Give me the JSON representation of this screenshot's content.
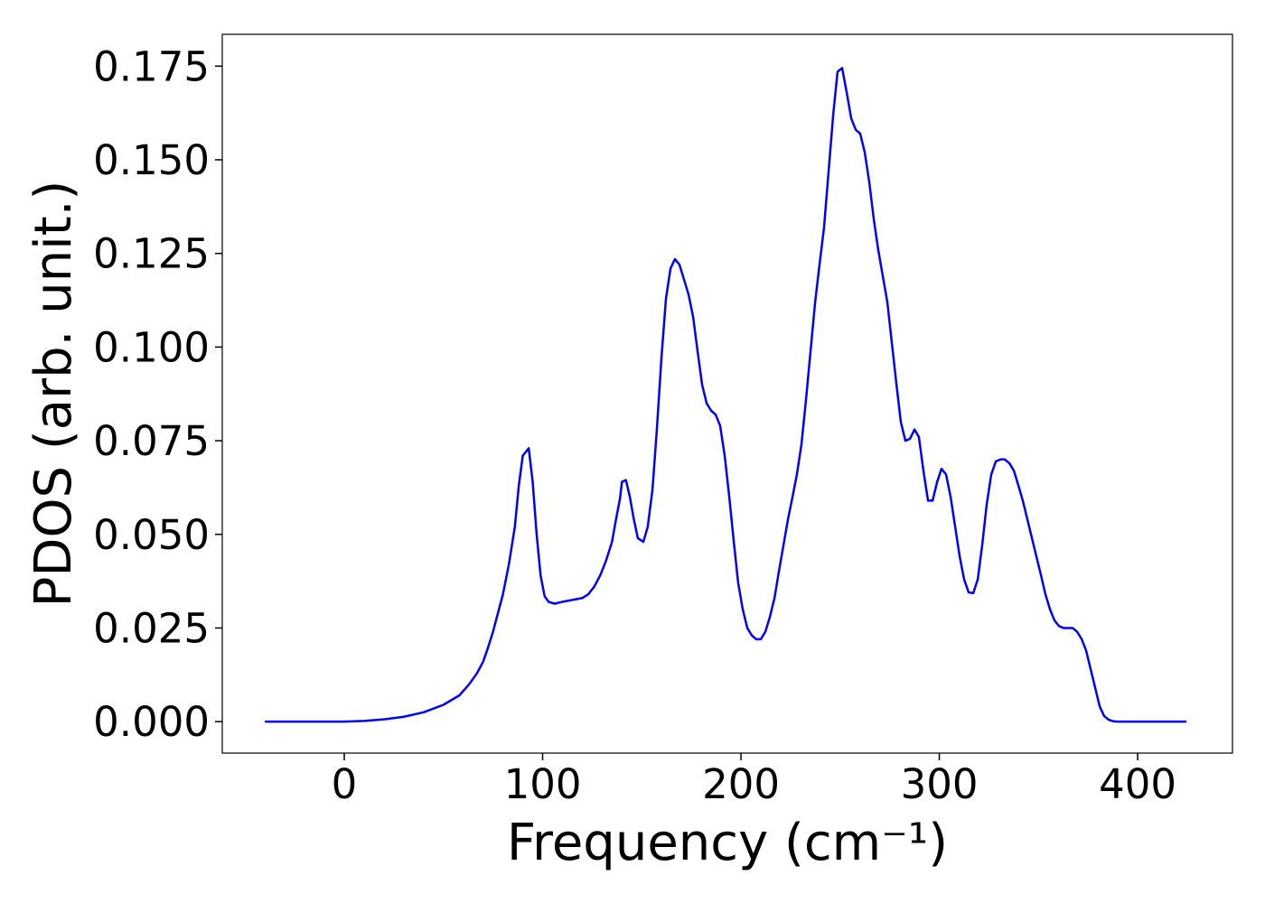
{
  "chart_data": {
    "type": "line",
    "x_label": "Frequency (cm⁻¹)",
    "y_label": "PDOS (arb. unit.)",
    "xlim": [
      -61.5,
      447.8
    ],
    "ylim": [
      -0.0084,
      0.1835
    ],
    "xticks": [
      0,
      100,
      200,
      300,
      400
    ],
    "yticks": [
      {
        "value": 0,
        "label": "0.000"
      },
      {
        "value": 0.025,
        "label": "0.025"
      },
      {
        "value": 0.05,
        "label": "0.050"
      },
      {
        "value": 0.075,
        "label": "0.075"
      },
      {
        "value": 0.1,
        "label": "0.100"
      },
      {
        "value": 0.125,
        "label": "0.125"
      },
      {
        "value": 0.15,
        "label": "0.150"
      },
      {
        "value": 0.175,
        "label": "0.175"
      }
    ],
    "x": [
      -40,
      -20,
      0,
      10,
      20,
      30,
      40,
      50,
      58,
      63,
      67,
      70,
      72,
      75,
      80,
      83,
      86,
      88,
      90,
      93,
      95,
      97,
      99,
      101,
      103,
      106,
      110,
      115,
      120,
      123,
      126,
      129,
      132,
      135,
      137,
      139,
      140,
      142,
      144,
      146,
      148,
      150.8,
      153,
      155.4,
      157.6,
      159.9,
      162.2,
      164.5,
      166.7,
      169,
      171.3,
      173.6,
      175.9,
      178.1,
      180.4,
      182.7,
      185,
      187.2,
      189.5,
      191.8,
      194.1,
      196.4,
      198.6,
      200.9,
      203.2,
      205.5,
      207.7,
      210,
      212.3,
      214.6,
      216.9,
      219.1,
      221.4,
      223.7,
      226,
      228.2,
      230.5,
      232.8,
      235.1,
      237.4,
      239.6,
      241.9,
      244.2,
      246.5,
      248.7,
      251,
      253.3,
      255.6,
      257.9,
      260.1,
      262.4,
      264.7,
      267,
      269.2,
      271.5,
      273.8,
      276.1,
      278.4,
      280.6,
      282.9,
      285.2,
      287.5,
      289.7,
      292,
      294.3,
      296.6,
      298.9,
      301.1,
      303.4,
      305.7,
      308,
      310.3,
      312.5,
      314.8,
      317.1,
      319.4,
      321.6,
      323.9,
      326.2,
      328.5,
      330.8,
      333,
      335.3,
      337.6,
      339.9,
      342.1,
      344.4,
      346.7,
      349,
      351.3,
      353.5,
      355.8,
      358.1,
      360.4,
      362.6,
      364.9,
      367.2,
      369.5,
      371.8,
      374,
      376.3,
      378.6,
      380.9,
      383.1,
      385.4,
      387.7,
      390,
      424.6
    ],
    "series": [
      {
        "name": "PDOS",
        "color": "#0000ff",
        "values": [
          0,
          0,
          0,
          0.0002,
          0.0006,
          0.0013,
          0.0025,
          0.0045,
          0.007,
          0.01,
          0.013,
          0.016,
          0.019,
          0.024,
          0.034,
          0.042,
          0.052,
          0.063,
          0.071,
          0.073,
          0.064,
          0.05,
          0.039,
          0.0335,
          0.032,
          0.0315,
          0.032,
          0.0325,
          0.033,
          0.034,
          0.036,
          0.039,
          0.043,
          0.048,
          0.054,
          0.0595,
          0.064,
          0.0645,
          0.06,
          0.054,
          0.049,
          0.048,
          0.052,
          0.062,
          0.078,
          0.097,
          0.113,
          0.121,
          0.1235,
          0.122,
          0.118,
          0.114,
          0.108,
          0.099,
          0.09,
          0.085,
          0.083,
          0.082,
          0.079,
          0.071,
          0.06,
          0.048,
          0.037,
          0.03,
          0.025,
          0.023,
          0.022,
          0.022,
          0.024,
          0.028,
          0.033,
          0.04,
          0.047,
          0.054,
          0.06,
          0.066,
          0.074,
          0.086,
          0.099,
          0.112,
          0.122,
          0.132,
          0.147,
          0.162,
          0.1735,
          0.1745,
          0.168,
          0.161,
          0.158,
          0.157,
          0.152,
          0.144,
          0.134,
          0.126,
          0.119,
          0.112,
          0.101,
          0.09,
          0.08,
          0.075,
          0.0755,
          0.078,
          0.076,
          0.067,
          0.059,
          0.059,
          0.064,
          0.0675,
          0.066,
          0.06,
          0.052,
          0.044,
          0.038,
          0.0345,
          0.0343,
          0.038,
          0.047,
          0.058,
          0.066,
          0.0695,
          0.07,
          0.07,
          0.069,
          0.067,
          0.063,
          0.059,
          0.054,
          0.049,
          0.044,
          0.039,
          0.034,
          0.03,
          0.027,
          0.0255,
          0.025,
          0.025,
          0.025,
          0.024,
          0.022,
          0.019,
          0.014,
          0.009,
          0.004,
          0.0015,
          0.0005,
          0.0001,
          0,
          0
        ]
      }
    ]
  }
}
